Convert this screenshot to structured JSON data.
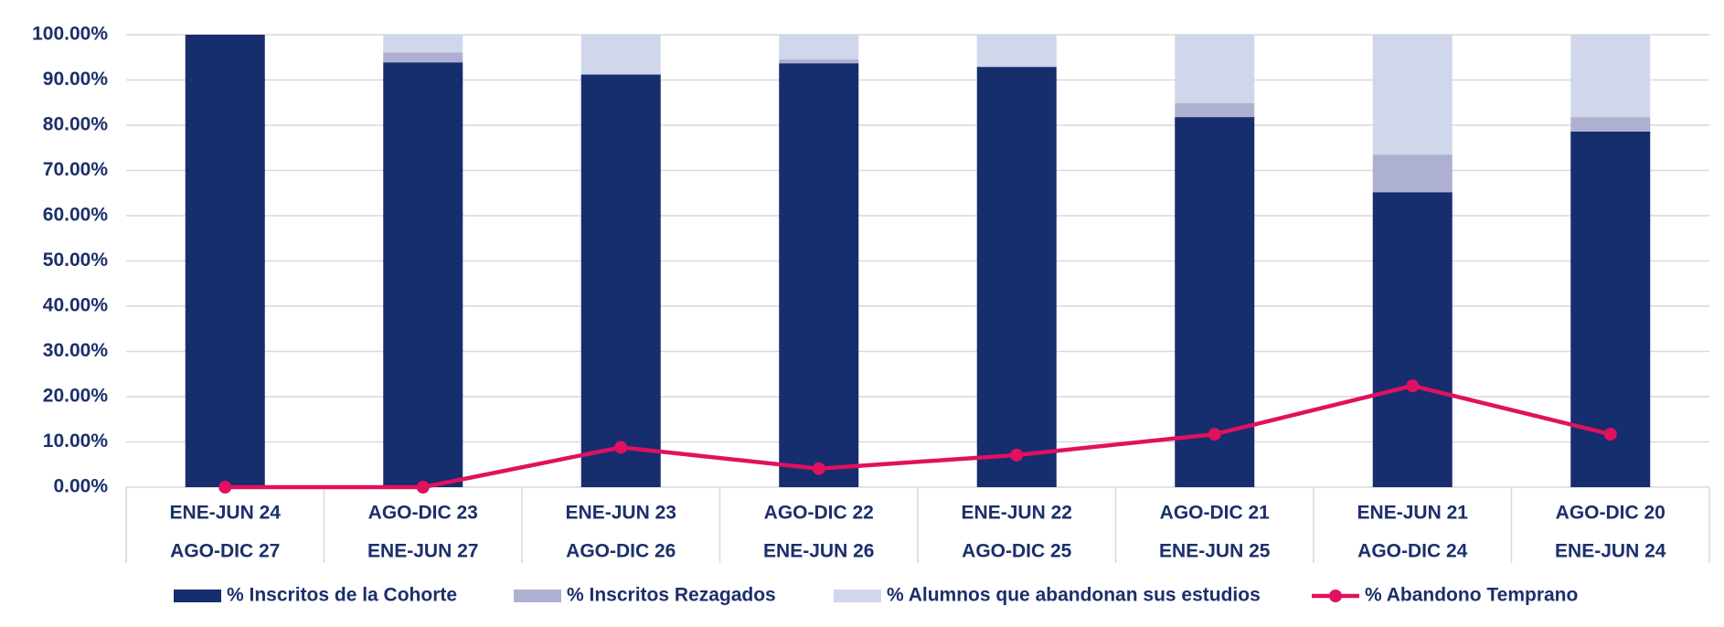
{
  "chart_data": {
    "type": "bar",
    "stacked": true,
    "categories": [
      [
        "ENE-JUN 24",
        "AGO-DIC 27"
      ],
      [
        "AGO-DIC 23",
        "ENE-JUN 27"
      ],
      [
        "ENE-JUN 23",
        "AGO-DIC 26"
      ],
      [
        "AGO-DIC 22",
        "ENE-JUN 26"
      ],
      [
        "ENE-JUN 22",
        "AGO-DIC 25"
      ],
      [
        "AGO-DIC 21",
        "ENE-JUN 25"
      ],
      [
        "ENE-JUN 21",
        "AGO-DIC 24"
      ],
      [
        "AGO-DIC 20",
        "ENE-JUN 24"
      ]
    ],
    "series": [
      {
        "name": "% Inscritos de la Cohorte",
        "type": "bar",
        "color": "#162d6e",
        "values": [
          100,
          93.9,
          91.2,
          93.7,
          92.9,
          81.8,
          65.2,
          78.6
        ]
      },
      {
        "name": "% Inscritos Rezagados",
        "type": "bar",
        "color": "#aeb0d2",
        "values": [
          0,
          2.2,
          0,
          0.9,
          0,
          3.1,
          8.3,
          3.2
        ]
      },
      {
        "name": "% Alumnos que abandonan sus estudios",
        "type": "bar",
        "color": "#d0d7ea",
        "values": [
          0,
          3.9,
          8.8,
          5.4,
          7.1,
          15.1,
          26.5,
          18.2
        ]
      },
      {
        "name": "% Abandono Temprano",
        "type": "line",
        "color": "#e0115f",
        "values": [
          0,
          0,
          8.8,
          4.1,
          7.1,
          11.7,
          22.4,
          11.7
        ]
      }
    ],
    "ylim": [
      0,
      100
    ],
    "yticks": [
      {
        "value": 0,
        "label": "0.00%"
      },
      {
        "value": 10,
        "label": "10.00%"
      },
      {
        "value": 20,
        "label": "20.00%"
      },
      {
        "value": 30,
        "label": "30.00%"
      },
      {
        "value": 40,
        "label": "40.00%"
      },
      {
        "value": 50,
        "label": "50.00%"
      },
      {
        "value": 60,
        "label": "60.00%"
      },
      {
        "value": 70,
        "label": "70.00%"
      },
      {
        "value": 80,
        "label": "80.00%"
      },
      {
        "value": 90,
        "label": "90.00%"
      },
      {
        "value": 100,
        "label": "100.00%"
      }
    ],
    "grid": true,
    "legend": "bottom"
  }
}
